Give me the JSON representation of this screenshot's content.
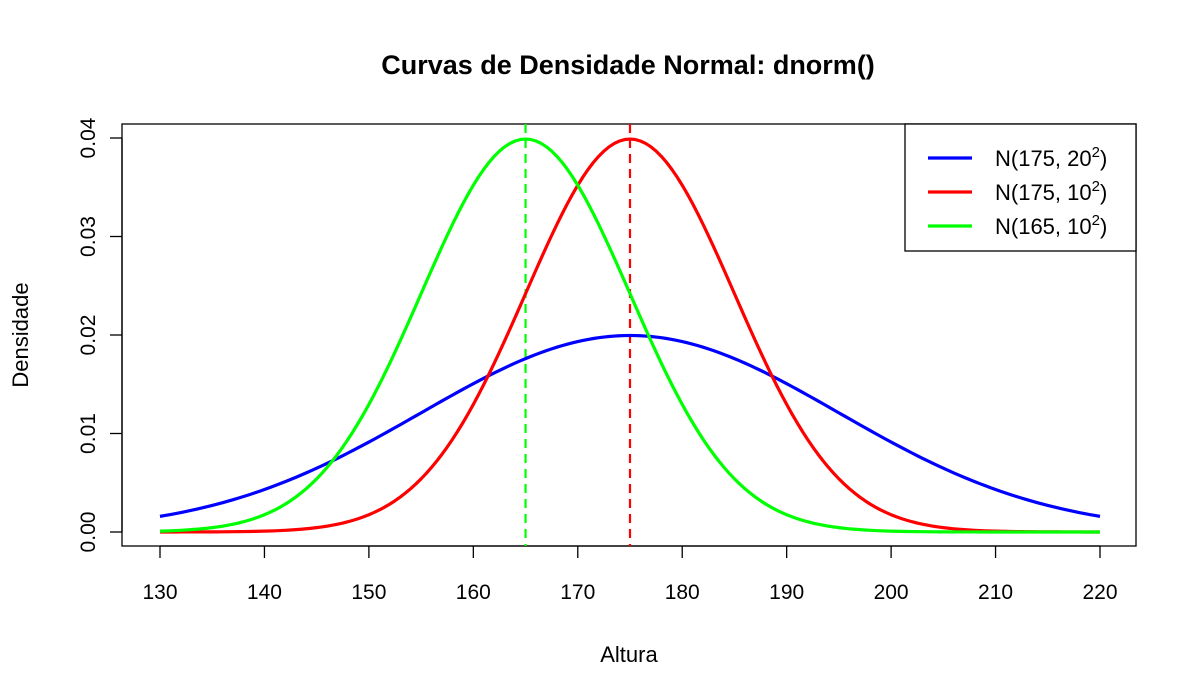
{
  "chart_data": {
    "type": "line",
    "title": "Curvas de Densidade Normal: dnorm()",
    "xlabel": "Altura",
    "ylabel": "Densidade",
    "xlim": [
      130,
      220
    ],
    "ylim": [
      0,
      0.04
    ],
    "x_ticks": [
      130,
      140,
      150,
      160,
      170,
      180,
      190,
      200,
      210,
      220
    ],
    "y_ticks": [
      "0.00",
      "0.01",
      "0.02",
      "0.03",
      "0.04"
    ],
    "grid": false,
    "legend_position": "top-right",
    "series": [
      {
        "name": "N(175, 20²)",
        "legend_base": "N(175, 20",
        "legend_sup": "2",
        "legend_close": ")",
        "mean": 175,
        "sd": 20,
        "color": "#0000ff",
        "x": [
          130,
          135,
          140,
          145,
          150,
          155,
          160,
          165,
          170,
          175,
          180,
          185,
          190,
          195,
          200,
          205,
          210,
          215,
          220
        ],
        "y": [
          0.0016,
          0.0027,
          0.0043,
          0.0065,
          0.0091,
          0.0121,
          0.0151,
          0.0176,
          0.0193,
          0.0199,
          0.0193,
          0.0176,
          0.0151,
          0.0121,
          0.0091,
          0.0065,
          0.0043,
          0.0027,
          0.0016
        ]
      },
      {
        "name": "N(175, 10²)",
        "legend_base": "N(175, 10",
        "legend_sup": "2",
        "legend_close": ")",
        "mean": 175,
        "sd": 10,
        "color": "#ff0000",
        "x": [
          130,
          135,
          140,
          145,
          150,
          155,
          160,
          165,
          170,
          175,
          180,
          185,
          190,
          195,
          200,
          205,
          210,
          215,
          220
        ],
        "y": [
          0.0,
          0.0,
          0.0001,
          0.0004,
          0.0018,
          0.0054,
          0.013,
          0.0242,
          0.0352,
          0.0399,
          0.0352,
          0.0242,
          0.013,
          0.0054,
          0.0018,
          0.0004,
          0.0001,
          0.0,
          0.0
        ]
      },
      {
        "name": "N(165, 10²)",
        "legend_base": "N(165, 10",
        "legend_sup": "2",
        "legend_close": ")",
        "mean": 165,
        "sd": 10,
        "color": "#00ff00",
        "x": [
          130,
          135,
          140,
          145,
          150,
          155,
          160,
          165,
          170,
          175,
          180,
          185,
          190,
          195,
          200,
          205,
          210,
          215,
          220
        ],
        "y": [
          0.0001,
          0.0004,
          0.0018,
          0.0054,
          0.013,
          0.0242,
          0.0352,
          0.0399,
          0.0352,
          0.0242,
          0.013,
          0.0054,
          0.0018,
          0.0004,
          0.0001,
          0.0,
          0.0,
          0.0,
          0.0
        ]
      }
    ],
    "vlines": [
      {
        "x": 165,
        "color": "#00ff00",
        "style": "dashed"
      },
      {
        "x": 175,
        "color": "#ff0000",
        "style": "dashed"
      }
    ]
  }
}
